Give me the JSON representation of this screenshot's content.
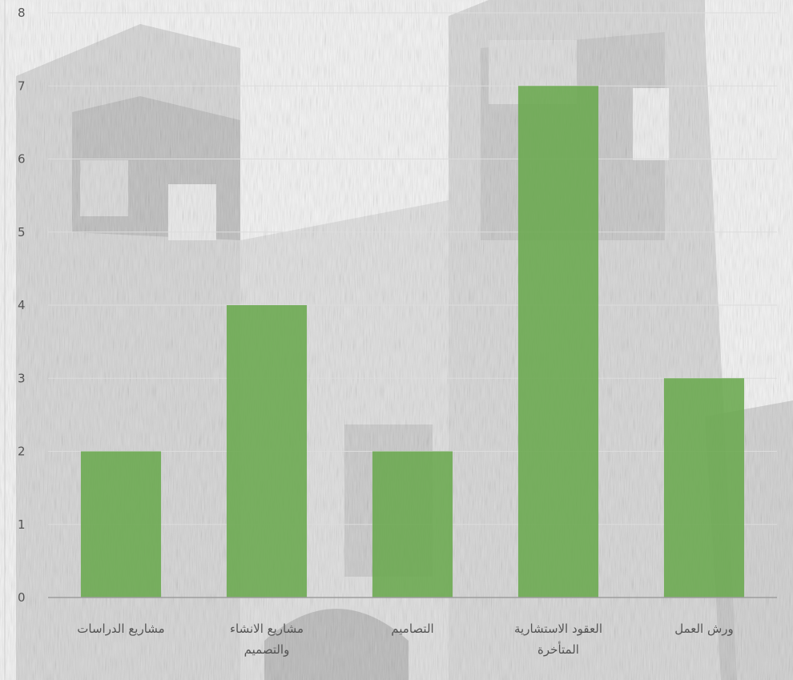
{
  "chart_data": {
    "type": "bar",
    "categories": [
      [
        "مشاريع الدراسات"
      ],
      [
        "مشاريع الانشاء",
        "والتصميم"
      ],
      [
        "التصاميم"
      ],
      [
        "العقود الاستشارية",
        "المتأخرة"
      ],
      [
        "ورش العمل"
      ]
    ],
    "values": [
      2,
      4,
      2,
      7,
      3
    ],
    "ylim": [
      0,
      8
    ],
    "yticks": [
      "0",
      "1",
      "2",
      "3",
      "4",
      "5",
      "6",
      "7",
      "8"
    ],
    "grid": true,
    "bar_color": "#6aa84f",
    "grid_color": "#dcdcdc",
    "axis_color": "#9e9e9e"
  }
}
